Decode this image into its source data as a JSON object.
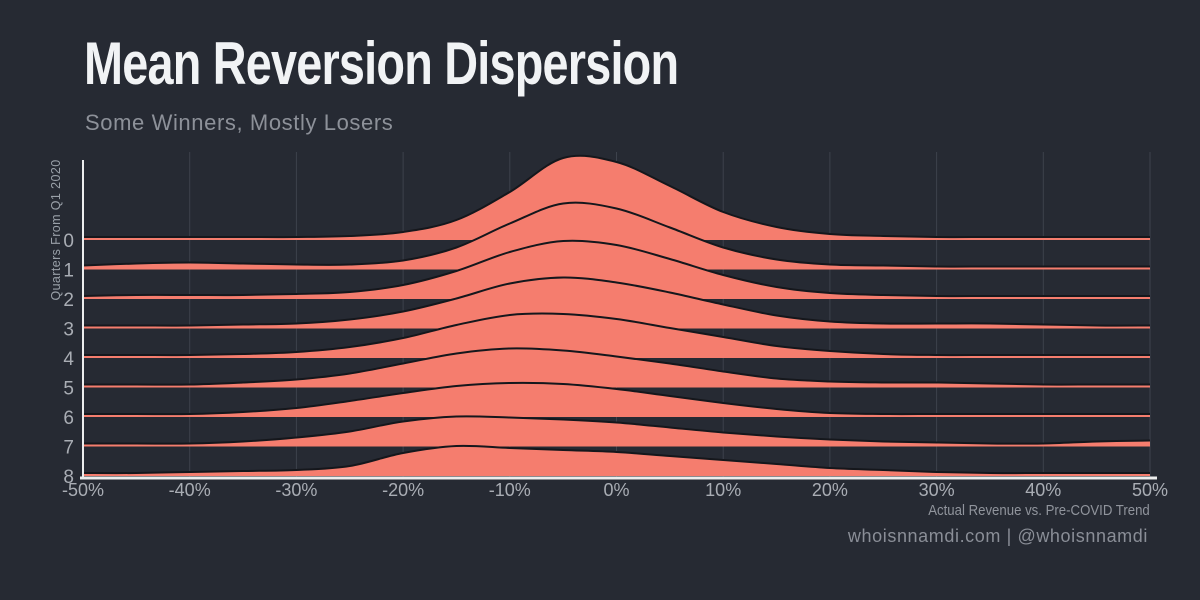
{
  "title": "Mean Reversion Dispersion",
  "subtitle": "Some Winners, Mostly Losers",
  "footer": "whoisnnamdi.com | @whoisnnamdi",
  "colors": {
    "background": "#262a33",
    "ridge_fill": "#f57d6e",
    "ridge_outline": "#15171c",
    "gridline": "#3d424c",
    "axis_spine": "#eceded",
    "title": "#f1f3f5",
    "subtitle": "#8d9199",
    "tick_label": "#a9adb4",
    "axis_caption": "#90949c",
    "footer": "#8a8e97"
  },
  "chart_data": {
    "type": "area",
    "variant": "ridgeline",
    "xlabel": "Actual Revenue vs. Pre-COVID Trend",
    "ylabel": "Quarters From Q1 2020",
    "xlim": [
      -50,
      50
    ],
    "grid": "vertical",
    "grid_x": [
      -40,
      -30,
      -20,
      -10,
      0,
      10,
      20,
      30,
      40,
      50
    ],
    "x_ticks": [
      "-50%",
      "-40%",
      "-30%",
      "-20%",
      "-10%",
      "0%",
      "10%",
      "20%",
      "30%",
      "40%",
      "50%"
    ],
    "x_tick_values": [
      -50,
      -40,
      -30,
      -20,
      -10,
      0,
      10,
      20,
      30,
      40,
      50
    ],
    "y_ticks": [
      "0",
      "1",
      "2",
      "3",
      "4",
      "5",
      "6",
      "7",
      "8"
    ],
    "height_units": "px_above_baseline",
    "x": [
      -50,
      -45,
      -40,
      -35,
      -30,
      -25,
      -20,
      -15,
      -10,
      -5,
      0,
      5,
      10,
      15,
      20,
      25,
      30,
      35,
      40,
      45,
      50
    ],
    "series": [
      {
        "name": "0",
        "heights": [
          3,
          3,
          3,
          3,
          3,
          4,
          8,
          20,
          48,
          82,
          78,
          54,
          28,
          13,
          6,
          4,
          3,
          3,
          3,
          3,
          3
        ]
      },
      {
        "name": "1",
        "heights": [
          4,
          6,
          7,
          6,
          5,
          5,
          9,
          22,
          46,
          66,
          61,
          42,
          22,
          10,
          5,
          4,
          3,
          3,
          3,
          3,
          3
        ]
      },
      {
        "name": "2",
        "heights": [
          3,
          4,
          4,
          4,
          5,
          7,
          14,
          28,
          47,
          58,
          54,
          40,
          24,
          12,
          6,
          4,
          3,
          3,
          3,
          3,
          3
        ]
      },
      {
        "name": "3",
        "heights": [
          3,
          3,
          3,
          4,
          5,
          9,
          17,
          30,
          45,
          51,
          46,
          36,
          24,
          13,
          7,
          5,
          5,
          5,
          4,
          3,
          3
        ]
      },
      {
        "name": "4",
        "heights": [
          3,
          3,
          3,
          4,
          6,
          11,
          20,
          33,
          43,
          44,
          39,
          30,
          21,
          12,
          7,
          4,
          3,
          3,
          3,
          3,
          3
        ]
      },
      {
        "name": "5",
        "heights": [
          3,
          3,
          3,
          5,
          8,
          14,
          24,
          34,
          39,
          37,
          31,
          24,
          16,
          9,
          6,
          5,
          5,
          4,
          3,
          3,
          3
        ]
      },
      {
        "name": "6",
        "heights": [
          3,
          3,
          3,
          5,
          9,
          16,
          24,
          31,
          34,
          33,
          28,
          21,
          14,
          8,
          4,
          3,
          3,
          3,
          3,
          3,
          3
        ]
      },
      {
        "name": "7",
        "heights": [
          3,
          3,
          3,
          5,
          9,
          15,
          25,
          30,
          29,
          27,
          24,
          19,
          14,
          10,
          7,
          5,
          4,
          3,
          3,
          5,
          6
        ]
      },
      {
        "name": "8",
        "heights": [
          3,
          3,
          4,
          5,
          6,
          10,
          23,
          30,
          28,
          26,
          24,
          20,
          16,
          12,
          8,
          6,
          4,
          3,
          3,
          3,
          3
        ]
      }
    ]
  }
}
